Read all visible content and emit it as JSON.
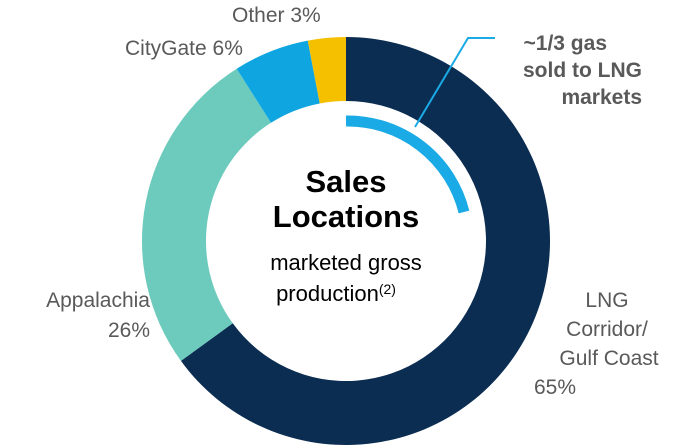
{
  "chart_data": {
    "type": "donut",
    "title_lines": [
      "Sales",
      "Locations"
    ],
    "subtitle_lines": [
      "marketed gross",
      "production"
    ],
    "subtitle_note": "(2)",
    "annotation_lines": [
      "~1/3 gas",
      "sold to LNG",
      "markets"
    ],
    "categories": [
      [
        "LNG",
        "Corridor/",
        "Gulf Coast"
      ],
      [
        "Appalachia"
      ],
      [
        "CityGate"
      ],
      [
        "Other"
      ]
    ],
    "values": [
      65,
      26,
      6,
      3
    ],
    "value_labels": [
      "65%",
      "26%",
      "6%",
      "3%"
    ],
    "colors": [
      "#0b2d52",
      "#6dcbbd",
      "#0ea5e0",
      "#f5c000"
    ]
  }
}
